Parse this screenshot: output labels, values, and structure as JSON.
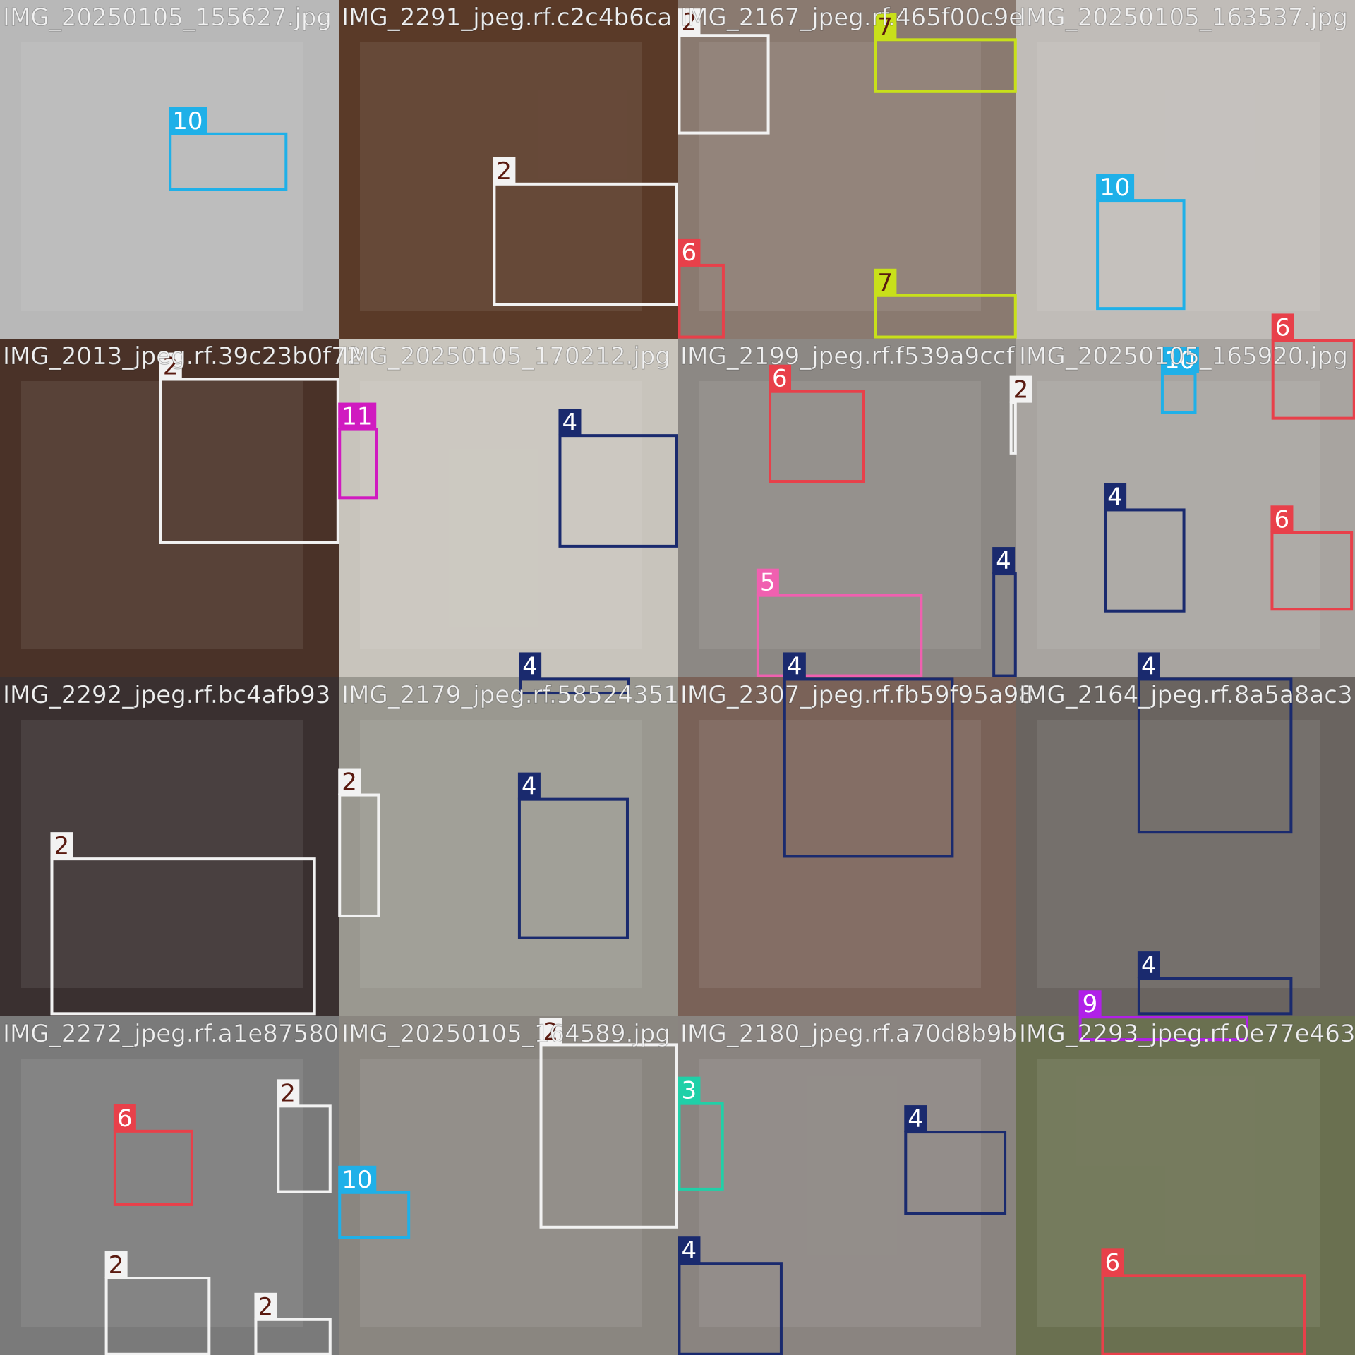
{
  "tiles": [
    {
      "title": "IMG_20250105_155627.jpg",
      "boxes": [
        {
          "label": 10,
          "color": "#1fb0e8"
        }
      ]
    },
    {
      "title": "IMG_2291_jpeg.rf.c2c4b6ca",
      "boxes": [
        {
          "label": 2,
          "color": "#f2f2f2"
        }
      ]
    },
    {
      "title": "IMG_2167_jpeg.rf.465f00c9e",
      "boxes": [
        {
          "label": 2,
          "color": "#f2f2f2"
        },
        {
          "label": 7,
          "color": "#c8e01a"
        },
        {
          "label": 6,
          "color": "#e8404a"
        },
        {
          "label": 7,
          "color": "#c8e01a"
        }
      ]
    },
    {
      "title": "IMG_20250105_163537.jpg",
      "boxes": [
        {
          "label": 10,
          "color": "#1fb0e8"
        }
      ]
    },
    {
      "title": "IMG_2013_jpeg.rf.39c23b0f72",
      "boxes": [
        {
          "label": 2,
          "color": "#f2f2f2"
        }
      ]
    },
    {
      "title": "IMG_20250105_170212.jpg",
      "boxes": [
        {
          "label": 11,
          "color": "#d01ac0"
        },
        {
          "label": 4,
          "color": "#1a2a6e"
        },
        {
          "label": 4,
          "color": "#1a2a6e"
        }
      ]
    },
    {
      "title": "IMG_2199_jpeg.rf.f539a9ccf",
      "boxes": [
        {
          "label": 6,
          "color": "#e8404a"
        },
        {
          "label": 2,
          "color": "#f2f2f2"
        },
        {
          "label": 5,
          "color": "#f060b0"
        },
        {
          "label": 4,
          "color": "#1a2a6e"
        }
      ]
    },
    {
      "title": "IMG_20250105_165920.jpg",
      "boxes": [
        {
          "label": 10,
          "color": "#1fb0e8"
        },
        {
          "label": 6,
          "color": "#e8404a"
        },
        {
          "label": 4,
          "color": "#1a2a6e"
        },
        {
          "label": 6,
          "color": "#e8404a"
        }
      ]
    },
    {
      "title": "IMG_2292_jpeg.rf.bc4afb93",
      "boxes": [
        {
          "label": 2,
          "color": "#f2f2f2"
        }
      ]
    },
    {
      "title": "IMG_2179_jpeg.rf.58524351",
      "boxes": [
        {
          "label": 2,
          "color": "#f2f2f2"
        },
        {
          "label": 4,
          "color": "#1a2a6e"
        }
      ]
    },
    {
      "title": "IMG_2307_jpeg.rf.fb59f95a98",
      "boxes": [
        {
          "label": 4,
          "color": "#1a2a6e"
        }
      ]
    },
    {
      "title": "IMG_2164_jpeg.rf.8a5a8ac3",
      "boxes": [
        {
          "label": 4,
          "color": "#1a2a6e"
        },
        {
          "label": 4,
          "color": "#1a2a6e"
        }
      ]
    },
    {
      "title": "IMG_2272_jpeg.rf.a1e87580",
      "boxes": [
        {
          "label": 6,
          "color": "#e8404a"
        },
        {
          "label": 2,
          "color": "#f2f2f2"
        },
        {
          "label": 2,
          "color": "#f2f2f2"
        },
        {
          "label": 2,
          "color": "#f2f2f2"
        }
      ]
    },
    {
      "title": "IMG_20250105_164589.jpg",
      "boxes": [
        {
          "label": 10,
          "color": "#1fb0e8"
        },
        {
          "label": 2,
          "color": "#f2f2f2"
        }
      ]
    },
    {
      "title": "IMG_2180_jpeg.rf.a70d8b9b",
      "boxes": [
        {
          "label": 3,
          "color": "#20d0a8"
        },
        {
          "label": 4,
          "color": "#1a2a6e"
        },
        {
          "label": 4,
          "color": "#1a2a6e"
        }
      ]
    },
    {
      "title": "IMG_2293_jpeg.rf.0e77e463",
      "boxes": [
        {
          "label": 9,
          "color": "#b020e8"
        },
        {
          "label": 6,
          "color": "#e8404a"
        }
      ]
    }
  ]
}
